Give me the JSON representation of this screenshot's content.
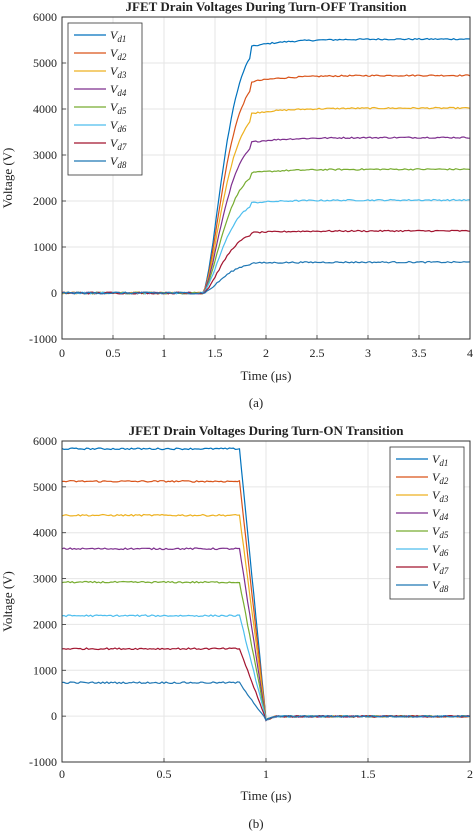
{
  "colors": [
    "#0072BD",
    "#D95319",
    "#EDB120",
    "#7E2F8E",
    "#77AC30",
    "#4DBEEE",
    "#A2142F",
    "#1F77B4"
  ],
  "chart_data": [
    {
      "type": "line",
      "title": "JFET Drain Voltages During Turn-OFF Transition",
      "xlabel": "Time (μs)",
      "ylabel": "Voltage (V)",
      "caption": "(a)",
      "xlim": [
        0,
        4
      ],
      "ylim": [
        -1000,
        6000
      ],
      "xticks": [
        "0",
        "0.5",
        "1",
        "1.5",
        "2",
        "2.5",
        "3",
        "3.5",
        "4"
      ],
      "yticks": [
        "-1000",
        "0",
        "1000",
        "2000",
        "3000",
        "4000",
        "5000",
        "6000"
      ],
      "grid": true,
      "legend_position": "top-left",
      "series": [
        {
          "name": "V",
          "sub": "d1",
          "final": 5520
        },
        {
          "name": "V",
          "sub": "d2",
          "final": 4730
        },
        {
          "name": "V",
          "sub": "d3",
          "final": 4020
        },
        {
          "name": "V",
          "sub": "d4",
          "final": 3380
        },
        {
          "name": "V",
          "sub": "d5",
          "final": 2690
        },
        {
          "name": "V",
          "sub": "d6",
          "final": 2020
        },
        {
          "name": "V",
          "sub": "d7",
          "final": 1350
        },
        {
          "name": "V",
          "sub": "d8",
          "final": 670
        }
      ],
      "line_series_colors": [
        0,
        7,
        5,
        4,
        3,
        2,
        1,
        0
      ]
    },
    {
      "type": "line",
      "title": "JFET Drain Voltages During Turn-ON Transition",
      "xlabel": "Time (μs)",
      "ylabel": "Voltage (V)",
      "caption": "(b)",
      "xlim": [
        0,
        2
      ],
      "ylim": [
        -1000,
        6000
      ],
      "xticks": [
        "0",
        "0.5",
        "1",
        "1.5",
        "2"
      ],
      "yticks": [
        "-1000",
        "0",
        "1000",
        "2000",
        "3000",
        "4000",
        "5000",
        "6000"
      ],
      "grid": true,
      "legend_position": "top-right",
      "series": [
        {
          "name": "V",
          "sub": "d1",
          "initial": 5830
        },
        {
          "name": "V",
          "sub": "d2",
          "initial": 5120
        },
        {
          "name": "V",
          "sub": "d3",
          "initial": 4380
        },
        {
          "name": "V",
          "sub": "d4",
          "initial": 3650
        },
        {
          "name": "V",
          "sub": "d5",
          "initial": 2920
        },
        {
          "name": "V",
          "sub": "d6",
          "initial": 2190
        },
        {
          "name": "V",
          "sub": "d7",
          "initial": 1470
        },
        {
          "name": "V",
          "sub": "d8",
          "initial": 730
        }
      ],
      "line_series_colors": [
        0,
        7,
        5,
        4,
        3,
        2,
        1,
        0
      ]
    }
  ]
}
